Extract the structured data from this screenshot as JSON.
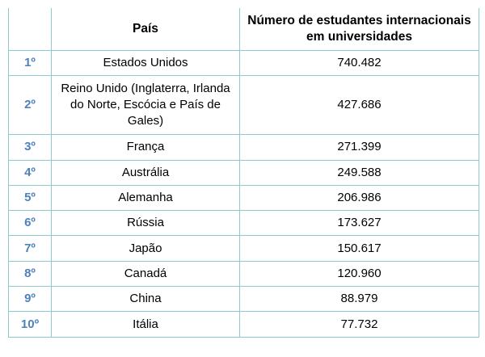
{
  "table": {
    "headers": {
      "rank": "",
      "country": "País",
      "students": "Número de estudantes internacionais em universidades"
    },
    "rows": [
      {
        "rank": "1º",
        "country": "Estados Unidos",
        "students": "740.482"
      },
      {
        "rank": "2º",
        "country": "Reino Unido (Inglaterra, Irlanda do Norte, Escócia e País de Gales)",
        "students": "427.686"
      },
      {
        "rank": "3º",
        "country": "França",
        "students": "271.399"
      },
      {
        "rank": "4º",
        "country": "Austrália",
        "students": "249.588"
      },
      {
        "rank": "5º",
        "country": "Alemanha",
        "students": "206.986"
      },
      {
        "rank": "6º",
        "country": "Rússia",
        "students": "173.627"
      },
      {
        "rank": "7º",
        "country": "Japão",
        "students": "150.617"
      },
      {
        "rank": "8º",
        "country": "Canadá",
        "students": "120.960"
      },
      {
        "rank": "9º",
        "country": "China",
        "students": "88.979"
      },
      {
        "rank": "10º",
        "country": "Itália",
        "students": "77.732"
      }
    ]
  },
  "colors": {
    "border": "#8fc9c9",
    "rank_text": "#4f81bd"
  }
}
